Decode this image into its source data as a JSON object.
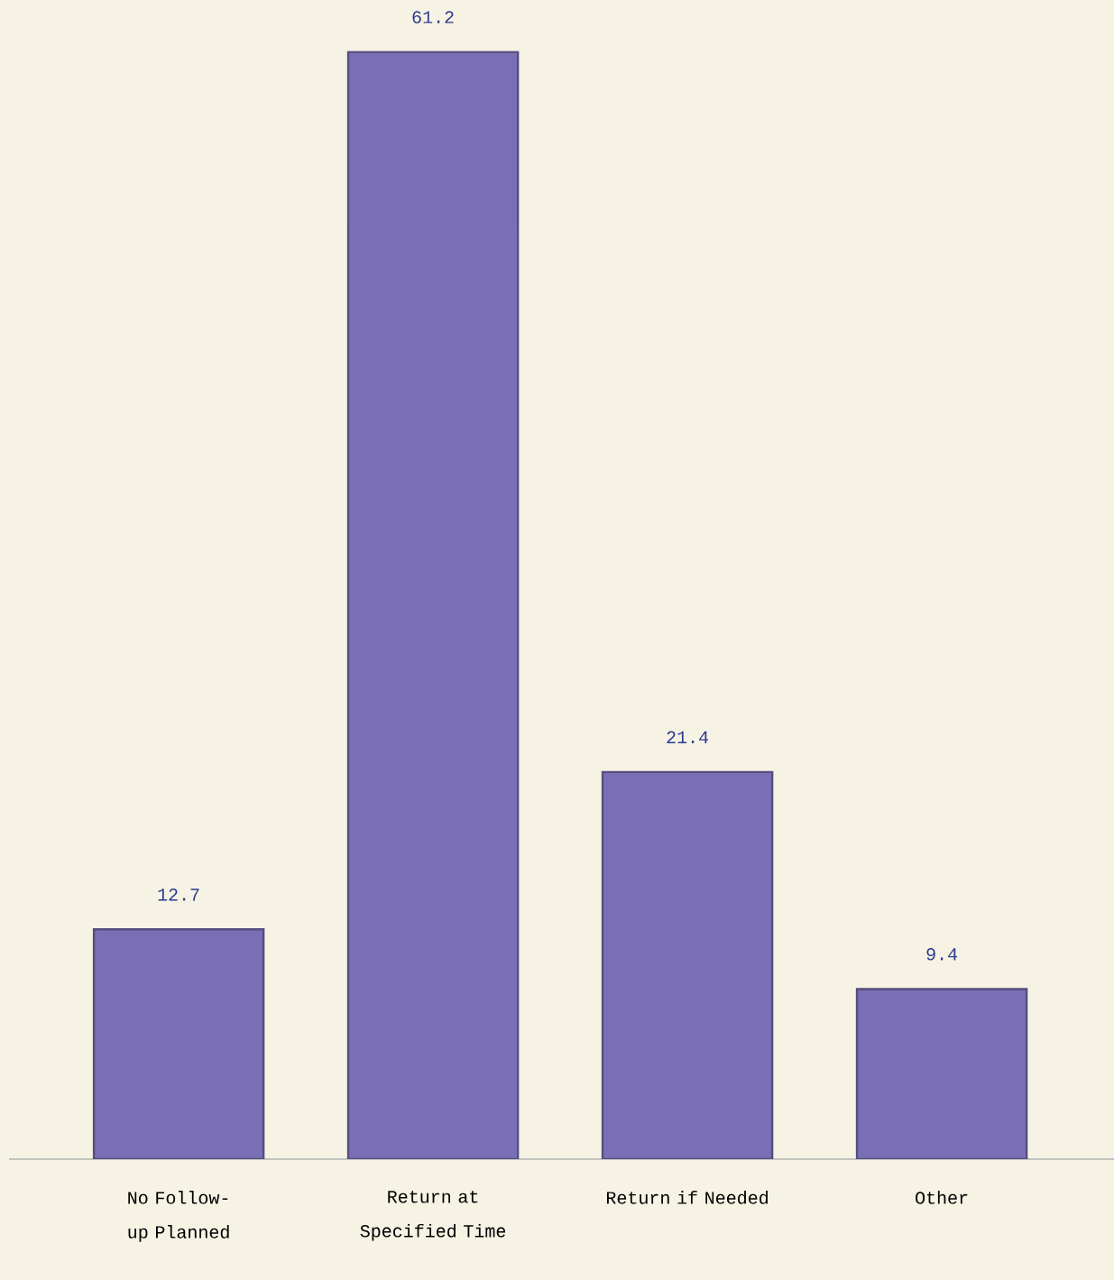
{
  "chart_data": {
    "type": "bar",
    "categories": [
      "No Follow-up Planned",
      "Return at Specified Time",
      "Return if Needed",
      "Other"
    ],
    "values": [
      12.7,
      61.2,
      21.4,
      9.4
    ],
    "color": "#7a6fb5",
    "data_labels": true
  }
}
